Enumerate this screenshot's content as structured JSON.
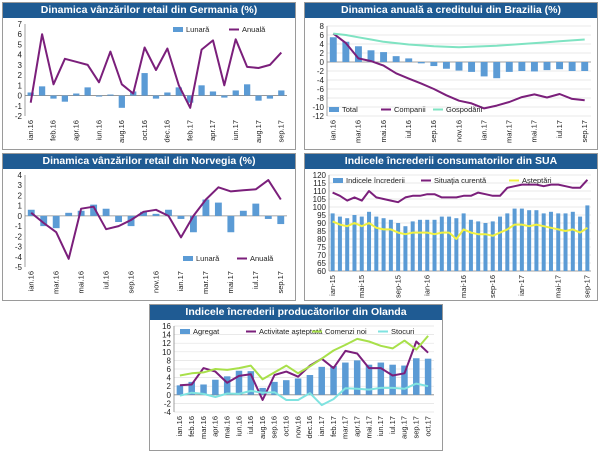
{
  "chart_data": [
    {
      "type": "bar",
      "title": "Dinamica vânzărilor retail din Germania (%)",
      "categories": [
        "ian.16",
        "",
        "feb.16",
        "",
        "apr.16",
        "",
        "iun.16",
        "",
        "aug.16",
        "",
        "oct.16",
        "",
        "dec.16",
        "",
        "feb.17",
        "",
        "apr.17",
        "",
        "iun.17",
        "",
        "aug.17",
        "",
        "sep.17"
      ],
      "x_tick_labels": [
        "ian.16",
        "feb.16",
        "apr.16",
        "iun.16",
        "aug.16",
        "oct.16",
        "dec.16",
        "feb.17",
        "apr.17",
        "iun.17",
        "aug.17",
        "sep.17"
      ],
      "ylim": [
        -2,
        7
      ],
      "y_ticks": [
        -2,
        -1,
        0,
        1,
        2,
        3,
        4,
        5,
        6,
        7
      ],
      "series": [
        {
          "name": "Lunară",
          "kind": "bar",
          "color": "#5b9bd5",
          "values": [
            0.3,
            0.9,
            -0.3,
            -0.6,
            0.2,
            0.8,
            -0.1,
            0.1,
            -1.2,
            0.4,
            2.2,
            -0.3,
            0.3,
            0.8,
            -0.7,
            1.0,
            0.4,
            -0.2,
            0.5,
            1.1,
            -0.5,
            -0.3,
            0.5
          ]
        },
        {
          "name": "Anuală",
          "kind": "line",
          "color": "#7b1f7b",
          "values": [
            -0.7,
            6.0,
            1.1,
            3.6,
            3.3,
            3.0,
            1.3,
            4.3,
            1.1,
            0.2,
            4.7,
            2.5,
            4.6,
            1.0,
            -1.2,
            4.5,
            5.4,
            1.0,
            5.5,
            2.8,
            2.7,
            3.0,
            4.2
          ]
        }
      ],
      "legend": "top-right",
      "grid": false
    },
    {
      "type": "bar",
      "title": "Dinamica anuală a creditului din Brazilia  (%)",
      "categories": [
        "ian.16",
        "",
        "mar.16",
        "",
        "mai.16",
        "",
        "iul.16",
        "",
        "sep.16",
        "",
        "nov.16",
        "",
        "ian.17",
        "",
        "mar.17",
        "",
        "mai.17",
        "",
        "iul.17",
        "",
        "sep.17"
      ],
      "x_tick_labels": [
        "ian.16",
        "mar.16",
        "mai.16",
        "iul.16",
        "sep.16",
        "nov.16",
        "ian.17",
        "mar.17",
        "mai.17",
        "iul.17",
        "sep.17"
      ],
      "ylim": [
        -12,
        8
      ],
      "y_ticks": [
        -12,
        -10,
        -8,
        -6,
        -4,
        -2,
        0,
        2,
        4,
        6,
        8
      ],
      "series": [
        {
          "name": "Total",
          "kind": "bar",
          "color": "#5b9bd5",
          "values": [
            5.5,
            4.5,
            3.5,
            2.6,
            2.2,
            1.3,
            0.8,
            -0.3,
            -0.9,
            -1.5,
            -1.9,
            -2.2,
            -3.2,
            -3.6,
            -2.2,
            -2.0,
            -2.1,
            -1.8,
            -1.6,
            -2.0,
            -2.0
          ]
        },
        {
          "name": "Companii",
          "kind": "line",
          "color": "#7b1f7b",
          "values": [
            6.3,
            4.2,
            0.8,
            0.2,
            -0.8,
            -2.5,
            -3.7,
            -4.8,
            -6.0,
            -7.4,
            -8.6,
            -9.2,
            -10.3,
            -9.7,
            -8.9,
            -7.8,
            -7.2,
            -7.9,
            -7.1,
            -8.2,
            -8.5
          ]
        },
        {
          "name": "Gospodării",
          "kind": "line",
          "color": "#7fe3c2",
          "values": [
            6.3,
            6.0,
            5.5,
            5.0,
            4.5,
            4.2,
            3.9,
            3.7,
            3.5,
            3.4,
            3.3,
            3.4,
            3.5,
            3.6,
            3.8,
            4.0,
            4.2,
            4.4,
            4.6,
            4.8,
            5.0
          ]
        }
      ],
      "legend": "bottom-left",
      "grid": true
    },
    {
      "type": "bar",
      "title": "Dinamica vânzărilor retail din Norvegia (%)",
      "categories": [
        "ian.16",
        "",
        "mar.16",
        "",
        "mai.16",
        "",
        "iul.16",
        "",
        "sep.16",
        "",
        "nov.16",
        "",
        "ian.17",
        "",
        "mar.17",
        "",
        "mai.17",
        "",
        "iul.17",
        "",
        "sep.17"
      ],
      "x_tick_labels": [
        "ian.16",
        "mar.16",
        "mai.16",
        "iul.16",
        "sep.16",
        "nov.16",
        "ian.17",
        "mar.17",
        "mai.17",
        "iul.17",
        "sep.17"
      ],
      "ylim": [
        -5,
        4
      ],
      "y_ticks": [
        -5,
        -4,
        -3,
        -2,
        -1,
        0,
        1,
        2,
        3,
        4
      ],
      "series": [
        {
          "name": "Lunară",
          "kind": "bar",
          "color": "#5b9bd5",
          "values": [
            0.6,
            -1.0,
            -1.2,
            0.3,
            0.5,
            1.1,
            0.7,
            -0.6,
            -1.0,
            0.4,
            0.2,
            0.6,
            -0.3,
            -1.6,
            1.6,
            1.3,
            -1.6,
            0.5,
            1.2,
            -0.3,
            -0.8
          ]
        },
        {
          "name": "Anuală",
          "kind": "line",
          "color": "#7b1f7b",
          "values": [
            0.3,
            -0.7,
            -1.6,
            -4.2,
            0.7,
            0.9,
            -1.3,
            -1.0,
            -0.4,
            0.4,
            0.6,
            0.0,
            -2.1,
            0.0,
            1.6,
            2.8,
            2.4,
            2.5,
            2.6,
            3.5,
            1.6
          ]
        }
      ],
      "legend": "bottom-right",
      "grid": false
    },
    {
      "type": "bar",
      "title": "Indicele încrederii consumatorilor din SUA",
      "categories": [
        "ian.15",
        "",
        "",
        "",
        "mai.15",
        "",
        "",
        "",
        "sep.15",
        "",
        "",
        "",
        "ian.16",
        "",
        "",
        "",
        "mai.16",
        "",
        "",
        "",
        "sep.16",
        "",
        "",
        "",
        "ian.17",
        "",
        "",
        "",
        "mai.17",
        "",
        "",
        "",
        "sep.17",
        "",
        "",
        ""
      ],
      "x_tick_labels": [
        "ian-15",
        "mai-15",
        "sep-15",
        "ian-16",
        "mai-16",
        "sep-16",
        "ian-17",
        "mai-17",
        "sep-17"
      ],
      "ylim": [
        60,
        120
      ],
      "y_ticks": [
        60,
        65,
        70,
        75,
        80,
        85,
        90,
        95,
        100,
        105,
        110,
        115,
        120
      ],
      "series": [
        {
          "name": "Indicele încrederii",
          "kind": "bar",
          "color": "#5b9bd5",
          "values": [
            96,
            94,
            93,
            95,
            94,
            97,
            94,
            93,
            92,
            90,
            88,
            91,
            92,
            92,
            92,
            94,
            94,
            93,
            96,
            92,
            91,
            90,
            91,
            94,
            96,
            99,
            99,
            98,
            98,
            96,
            97,
            96,
            96,
            97,
            94,
            101
          ]
        },
        {
          "name": "Situaţia curentă",
          "kind": "line",
          "color": "#7b1f7b",
          "values": [
            109,
            107,
            104,
            106,
            104,
            110,
            106,
            105,
            104,
            103,
            106,
            107,
            107,
            108,
            108,
            106,
            106,
            106,
            107,
            107,
            109,
            108,
            107,
            107,
            112,
            113,
            114,
            114,
            114,
            113,
            114,
            114,
            113,
            112,
            112,
            117
          ]
        },
        {
          "name": "Aşteptări",
          "kind": "line",
          "color": "#f0f040",
          "values": [
            91,
            89,
            88,
            90,
            88,
            90,
            87,
            86,
            86,
            84,
            83,
            84,
            84,
            84,
            83,
            84,
            84,
            80,
            86,
            84,
            83,
            83,
            82,
            84,
            86,
            89,
            89,
            88,
            89,
            88,
            87,
            86,
            85,
            86,
            84,
            87
          ]
        }
      ],
      "legend": "top",
      "grid": true
    },
    {
      "type": "bar",
      "title": "Indicele încrederii producătorilor din Olanda",
      "categories": [
        "ian.16",
        "feb.16",
        "mar.16",
        "apr.16",
        "mai.16",
        "iun.16",
        "iul.16",
        "aug.16",
        "sep.16",
        "oct.16",
        "nov.16",
        "dec.16",
        "ian.17",
        "feb.17",
        "mar.17",
        "apr.17",
        "mai.17",
        "iun.17",
        "iul.17",
        "aug.17",
        "sep.17",
        "oct.17"
      ],
      "x_tick_labels": [
        "ian.16",
        "feb.16",
        "mar.16",
        "apr.16",
        "mai.16",
        "iun.16",
        "iul.16",
        "aug.16",
        "sep.16",
        "oct.16",
        "nov.16",
        "dec.16",
        "ian.17",
        "feb.17",
        "mar.17",
        "apr.17",
        "mai.17",
        "iun.17",
        "iul.17",
        "aug.17",
        "sep.17",
        "oct.17"
      ],
      "ylim": [
        -4,
        16
      ],
      "y_ticks": [
        -4,
        -2,
        0,
        2,
        4,
        6,
        8,
        10,
        12,
        14,
        16
      ],
      "series": [
        {
          "name": "Agregat",
          "kind": "bar",
          "color": "#5b9bd5",
          "values": [
            2.2,
            3.0,
            2.4,
            3.5,
            4.3,
            5.6,
            5.5,
            1.6,
            3.0,
            3.4,
            3.8,
            4.6,
            6.5,
            6.7,
            7.5,
            8.0,
            7.0,
            7.5,
            7.0,
            6.8,
            8.5,
            8.4
          ]
        },
        {
          "name": "Activitate aşteptată",
          "kind": "line",
          "color": "#7b1f7b",
          "values": [
            2.2,
            2.4,
            6.2,
            5.4,
            2.8,
            4.4,
            4.8,
            -1.2,
            4.6,
            5.4,
            4.2,
            6.8,
            8.4,
            6.2,
            10.2,
            9.6,
            6.2,
            6.2,
            4.5,
            5.0,
            12.4,
            9.8
          ]
        },
        {
          "name": "Comenzi noi",
          "kind": "line",
          "color": "#a8e04a",
          "values": [
            4.5,
            5.0,
            5.2,
            6.0,
            5.8,
            6.2,
            6.8,
            3.6,
            5.2,
            6.8,
            5.0,
            6.6,
            8.4,
            10.3,
            11.6,
            13.0,
            12.4,
            11.4,
            10.8,
            12.6,
            10.5,
            13.7
          ]
        },
        {
          "name": "Stocuri",
          "kind": "line",
          "color": "#7fe3e0",
          "values": [
            -0.2,
            0.5,
            0.2,
            -0.5,
            0.3,
            0.2,
            0.9,
            0.5,
            0.6,
            -1.2,
            -1.2,
            0.4,
            -2.4,
            -1.0,
            1.5,
            1.4,
            1.2,
            1.6,
            1.6,
            1.4,
            2.6,
            2.0
          ]
        }
      ],
      "legend": "top",
      "grid": true
    }
  ]
}
